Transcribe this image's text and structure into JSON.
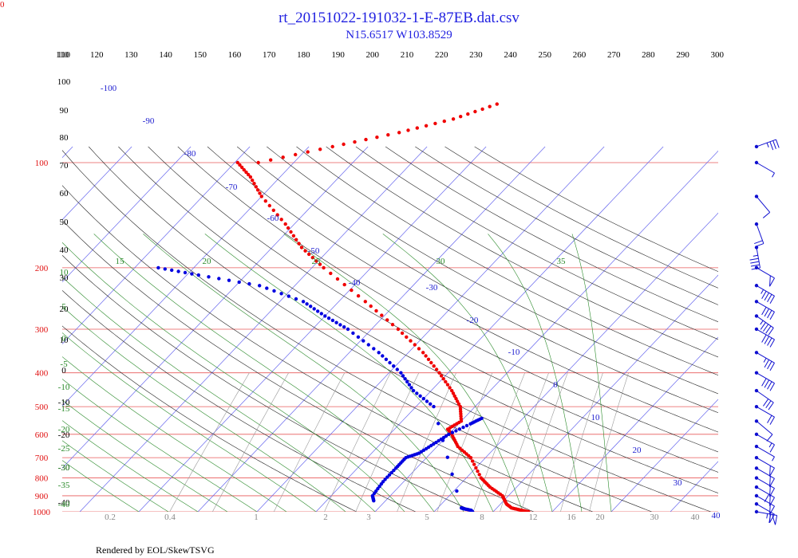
{
  "header": {
    "title": "rt_20151022-191032-1-E-87EB.dat.csv",
    "subtitle": "N15.6517 W103.8529",
    "corner_label": "0"
  },
  "footer": {
    "credit": "Rendered by EOL/SkewTSVG"
  },
  "colors": {
    "temperature": "#f00000",
    "dewpoint": "#0000e0",
    "isobar": "#e85a5a",
    "isotherm": "#6666ee",
    "dry_adiabat": "#222222",
    "moist_adiabat": "#2a8a2a",
    "mixing_ratio": "#999999",
    "wind_barb": "#1010d0"
  },
  "chart_data": {
    "type": "skew-t log-p",
    "title": "rt_20151022-191032-1-E-87EB.dat.csv",
    "subtitle": "N15.6517 W103.8529",
    "pressure_range_hpa": [
      1000,
      90
    ],
    "temperature_range_c": [
      -40,
      40
    ],
    "pressure_axis": {
      "scale": "log",
      "labels": [
        100,
        200,
        300,
        400,
        500,
        600,
        700,
        800,
        900,
        1000
      ]
    },
    "isotherm_labels": [
      -100,
      -90,
      -80,
      -70,
      -60,
      -50,
      -40,
      -30,
      -20,
      -10,
      0,
      10,
      20,
      30,
      40
    ],
    "dry_adiabat_labels": [
      110,
      120,
      130,
      140,
      150,
      160,
      170,
      180,
      190,
      200,
      210,
      220,
      230,
      240,
      250,
      260,
      270,
      280,
      290,
      300
    ],
    "dry_adiabat_left_labels": [
      110,
      100,
      90,
      80,
      70,
      60,
      50,
      40,
      30,
      20,
      10,
      0,
      -10,
      -20,
      -30,
      -40
    ],
    "moist_adiabat_labels": [
      15,
      20,
      25,
      30,
      35
    ],
    "moist_adiabat_left_labels": [
      10,
      5,
      0,
      -5,
      -10,
      -15,
      -20,
      -25,
      -30,
      -35,
      -40
    ],
    "mixing_ratio_labels": [
      "0.2",
      "0.4",
      "1",
      "2",
      "3",
      "5",
      "8",
      "12",
      "16",
      "20",
      "30",
      "40"
    ],
    "series": [
      {
        "name": "Temperature",
        "color": "#f00000",
        "points": [
          [
            1000,
            26.0
          ],
          [
            990,
            24.5
          ],
          [
            975,
            22.5
          ],
          [
            950,
            21.0
          ],
          [
            900,
            19.0
          ],
          [
            850,
            15.5
          ],
          [
            800,
            12.5
          ],
          [
            700,
            7.5
          ],
          [
            650,
            3.5
          ],
          [
            600,
            0.5
          ],
          [
            580,
            -1.0
          ],
          [
            550,
            0.0
          ],
          [
            500,
            -2.5
          ],
          [
            450,
            -6.5
          ],
          [
            400,
            -11.5
          ],
          [
            350,
            -17.5
          ],
          [
            300,
            -25.5
          ],
          [
            250,
            -35.5
          ],
          [
            200,
            -48.0
          ],
          [
            175,
            -55.0
          ],
          [
            150,
            -61.5
          ],
          [
            125,
            -70.0
          ],
          [
            110,
            -75.0
          ],
          [
            100,
            -79.5
          ]
        ]
      },
      {
        "name": "Dewpoint",
        "color": "#0000e0",
        "points": [
          [
            1000,
            16.5
          ],
          [
            990,
            16.0
          ],
          [
            980,
            14.5
          ],
          [
            975,
            14.0
          ],
          [
            500,
            -7.0
          ],
          [
            450,
            -13.0
          ],
          [
            400,
            -18.0
          ],
          [
            350,
            -25.0
          ],
          [
            300,
            -34.0
          ],
          [
            275,
            -40.0
          ],
          [
            250,
            -46.0
          ],
          [
            225,
            -56.0
          ],
          [
            210,
            -68.0
          ],
          [
            200,
            -76.0
          ]
        ]
      },
      {
        "name": "Dewpoint low-level segments",
        "color": "#0000e0",
        "points": [
          [
            930,
            -2.0
          ],
          [
            900,
            -3.0
          ],
          [
            820,
            -3.5
          ],
          [
            750,
            -3.5
          ],
          [
            700,
            -3.5
          ],
          [
            680,
            -2.0
          ],
          [
            640,
            -1.0
          ],
          [
            600,
            0.0
          ],
          [
            560,
            2.0
          ],
          [
            540,
            3.0
          ]
        ]
      },
      {
        "name": "Temperature upper fragment",
        "color": "#f00000",
        "points": [
          [
            100,
            -76.0
          ],
          [
            90,
            -66.0
          ],
          [
            82,
            -57.0
          ],
          [
            75,
            -50.0
          ],
          [
            68,
            -45.0
          ]
        ]
      }
    ],
    "wind_barbs": [
      {
        "p": 90,
        "speed_kt": 35,
        "dir": 250
      },
      {
        "p": 100,
        "speed_kt": 5,
        "dir": 300
      },
      {
        "p": 125,
        "speed_kt": 10,
        "dir": 320
      },
      {
        "p": 150,
        "speed_kt": 20,
        "dir": 340
      },
      {
        "p": 175,
        "speed_kt": 45,
        "dir": 350
      },
      {
        "p": 200,
        "speed_kt": 50,
        "dir": 300
      },
      {
        "p": 225,
        "speed_kt": 45,
        "dir": 300
      },
      {
        "p": 250,
        "speed_kt": 40,
        "dir": 300
      },
      {
        "p": 275,
        "speed_kt": 45,
        "dir": 305
      },
      {
        "p": 300,
        "speed_kt": 40,
        "dir": 300
      },
      {
        "p": 350,
        "speed_kt": 35,
        "dir": 300
      },
      {
        "p": 400,
        "speed_kt": 40,
        "dir": 300
      },
      {
        "p": 450,
        "speed_kt": 30,
        "dir": 305
      },
      {
        "p": 500,
        "speed_kt": 20,
        "dir": 300
      },
      {
        "p": 550,
        "speed_kt": 10,
        "dir": 310
      },
      {
        "p": 600,
        "speed_kt": 15,
        "dir": 300
      },
      {
        "p": 650,
        "speed_kt": 5,
        "dir": 300
      },
      {
        "p": 700,
        "speed_kt": 50,
        "dir": 300
      },
      {
        "p": 750,
        "speed_kt": 50,
        "dir": 300
      },
      {
        "p": 800,
        "speed_kt": 50,
        "dir": 300
      },
      {
        "p": 850,
        "speed_kt": 60,
        "dir": 300
      },
      {
        "p": 900,
        "speed_kt": 50,
        "dir": 300
      },
      {
        "p": 950,
        "speed_kt": 50,
        "dir": 300
      },
      {
        "p": 1000,
        "speed_kt": 65,
        "dir": 280
      }
    ]
  }
}
